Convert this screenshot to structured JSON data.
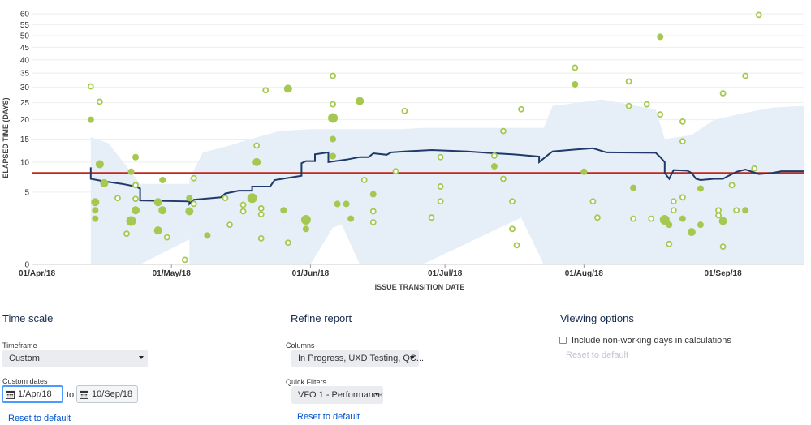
{
  "chart_data": {
    "type": "scatter",
    "xlabel": "ISSUE TRANSITION DATE",
    "ylabel": "ELAPSED TIME (DAYS)",
    "y_scale": "sqrt",
    "ylim": [
      0,
      62
    ],
    "xlim": [
      "2018-03-31",
      "2018-09-19"
    ],
    "x_ticks": [
      {
        "date": "2018-04-01",
        "label": "01/Apr/18"
      },
      {
        "date": "2018-05-01",
        "label": "01/May/18"
      },
      {
        "date": "2018-06-01",
        "label": "01/Jun/18"
      },
      {
        "date": "2018-07-01",
        "label": "01/Jul/18"
      },
      {
        "date": "2018-08-01",
        "label": "01/Aug/18"
      },
      {
        "date": "2018-09-01",
        "label": "01/Sep/18"
      }
    ],
    "y_ticks": [
      0,
      5,
      10,
      15,
      20,
      25,
      30,
      35,
      40,
      45,
      50,
      55,
      60
    ],
    "average_line": 8,
    "colors": {
      "issue": "#a5c850",
      "rolling": "#1f3a68",
      "average": "#c3281c",
      "band": "#e6eef8"
    },
    "rolling_average": [
      [
        "2018-04-13",
        9
      ],
      [
        "2018-04-13",
        7
      ],
      [
        "2018-04-16",
        6.6
      ],
      [
        "2018-04-20",
        6.2
      ],
      [
        "2018-04-23",
        5.8
      ],
      [
        "2018-04-24",
        5.5
      ],
      [
        "2018-04-24",
        3.9
      ],
      [
        "2018-05-05",
        3.8
      ],
      [
        "2018-05-05",
        3.5
      ],
      [
        "2018-05-06",
        4.0
      ],
      [
        "2018-05-12",
        4.3
      ],
      [
        "2018-05-13",
        4.8
      ],
      [
        "2018-05-16",
        5.2
      ],
      [
        "2018-05-19",
        5.2
      ],
      [
        "2018-05-19",
        5.8
      ],
      [
        "2018-05-23",
        5.8
      ],
      [
        "2018-05-24",
        6.8
      ],
      [
        "2018-05-30",
        7.5
      ],
      [
        "2018-05-30",
        9.8
      ],
      [
        "2018-05-31",
        10.2
      ],
      [
        "2018-06-02",
        10.2
      ],
      [
        "2018-06-02",
        11.6
      ],
      [
        "2018-06-05",
        12.0
      ],
      [
        "2018-06-05",
        10.0
      ],
      [
        "2018-06-09",
        10.5
      ],
      [
        "2018-06-12",
        11.0
      ],
      [
        "2018-06-14",
        11.0
      ],
      [
        "2018-06-15",
        11.8
      ],
      [
        "2018-06-18",
        11.5
      ],
      [
        "2018-06-19",
        12.0
      ],
      [
        "2018-06-22",
        12.2
      ],
      [
        "2018-06-28",
        12.5
      ],
      [
        "2018-07-06",
        12.2
      ],
      [
        "2018-07-12",
        11.8
      ],
      [
        "2018-07-16",
        11.6
      ],
      [
        "2018-07-22",
        11.1
      ],
      [
        "2018-07-22",
        10.0
      ],
      [
        "2018-07-24",
        11.5
      ],
      [
        "2018-07-25",
        12.2
      ],
      [
        "2018-07-30",
        12.6
      ],
      [
        "2018-08-03",
        12.9
      ],
      [
        "2018-08-06",
        12.0
      ],
      [
        "2018-08-17",
        11.9
      ],
      [
        "2018-08-18",
        11.0
      ],
      [
        "2018-08-19",
        10.0
      ],
      [
        "2018-08-19",
        8.0
      ],
      [
        "2018-08-20",
        7.0
      ],
      [
        "2018-08-21",
        8.5
      ],
      [
        "2018-08-24",
        8.4
      ],
      [
        "2018-08-25",
        8.0
      ],
      [
        "2018-08-26",
        7.0
      ],
      [
        "2018-08-27",
        6.8
      ],
      [
        "2018-08-30",
        7.0
      ],
      [
        "2018-09-01",
        7.0
      ],
      [
        "2018-09-02",
        7.4
      ],
      [
        "2018-09-04",
        8.2
      ],
      [
        "2018-09-06",
        8.6
      ],
      [
        "2018-09-09",
        7.8
      ],
      [
        "2018-09-12",
        8.0
      ],
      [
        "2018-09-14",
        8.3
      ],
      [
        "2018-09-19",
        8.3
      ]
    ],
    "band": [
      [
        "2018-04-13",
        0,
        15.5
      ],
      [
        "2018-04-17",
        0,
        14.0
      ],
      [
        "2018-04-24",
        0,
        6.2
      ],
      [
        "2018-05-05",
        0.6,
        6.2
      ],
      [
        "2018-05-05",
        0,
        7.0
      ],
      [
        "2018-05-08",
        0,
        12.0
      ],
      [
        "2018-05-14",
        0,
        13.5
      ],
      [
        "2018-05-17",
        0,
        14.5
      ],
      [
        "2018-05-25",
        0,
        17.0
      ],
      [
        "2018-06-01",
        0,
        17.5
      ],
      [
        "2018-06-06",
        1.3,
        17.5
      ],
      [
        "2018-06-08",
        1.5,
        17.5
      ],
      [
        "2018-06-12",
        0,
        17.5
      ],
      [
        "2018-06-21",
        0,
        17.5
      ],
      [
        "2018-06-26",
        0,
        17.8
      ],
      [
        "2018-07-18",
        2.1,
        17.8
      ],
      [
        "2018-07-23",
        0,
        17.8
      ],
      [
        "2018-07-25",
        0,
        24.0
      ],
      [
        "2018-08-05",
        0,
        26.0
      ],
      [
        "2018-08-17",
        0,
        23.0
      ],
      [
        "2018-08-19",
        0,
        15.0
      ],
      [
        "2018-08-25",
        0,
        16.0
      ],
      [
        "2018-08-30",
        0,
        20.0
      ],
      [
        "2018-09-06",
        0,
        22.0
      ],
      [
        "2018-09-12",
        0,
        23.5
      ],
      [
        "2018-09-19",
        0,
        24.0
      ]
    ],
    "issues": [
      [
        "2018-04-13",
        30.3,
        "ring",
        3
      ],
      [
        "2018-04-13",
        20.0,
        "dot",
        4
      ],
      [
        "2018-04-14",
        3.7,
        "dot",
        5
      ],
      [
        "2018-04-14",
        2.8,
        "dot",
        4
      ],
      [
        "2018-04-14",
        2.0,
        "dot",
        4
      ],
      [
        "2018-04-15",
        25.3,
        "ring",
        3
      ],
      [
        "2018-04-15",
        9.6,
        "dot",
        5
      ],
      [
        "2018-04-16",
        6.3,
        "dot",
        5
      ],
      [
        "2018-04-19",
        4.2,
        "ring",
        3
      ],
      [
        "2018-04-21",
        0.9,
        "ring",
        3
      ],
      [
        "2018-04-22",
        1.8,
        "dot",
        6
      ],
      [
        "2018-04-22",
        8.2,
        "dot",
        4
      ],
      [
        "2018-04-23",
        11.0,
        "dot",
        4
      ],
      [
        "2018-04-23",
        2.8,
        "dot",
        5
      ],
      [
        "2018-04-23",
        6.0,
        "ring",
        3
      ],
      [
        "2018-04-23",
        4.1,
        "ring",
        3
      ],
      [
        "2018-04-28",
        3.7,
        "dot",
        5
      ],
      [
        "2018-04-28",
        1.1,
        "dot",
        5
      ],
      [
        "2018-04-29",
        6.8,
        "dot",
        4
      ],
      [
        "2018-04-29",
        2.8,
        "dot",
        5
      ],
      [
        "2018-04-30",
        0.7,
        "ring",
        3
      ],
      [
        "2018-05-04",
        0.02,
        "ring",
        3
      ],
      [
        "2018-05-05",
        4.2,
        "dot",
        4
      ],
      [
        "2018-05-05",
        2.7,
        "dot",
        5
      ],
      [
        "2018-05-06",
        3.5,
        "ring",
        3
      ],
      [
        "2018-05-06",
        7.1,
        "ring",
        3
      ],
      [
        "2018-05-09",
        0.8,
        "dot",
        4
      ],
      [
        "2018-05-13",
        4.2,
        "ring",
        3
      ],
      [
        "2018-05-14",
        1.5,
        "ring",
        3
      ],
      [
        "2018-05-17",
        3.4,
        "ring",
        3
      ],
      [
        "2018-05-17",
        2.7,
        "ring",
        3
      ],
      [
        "2018-05-19",
        4.2,
        "dot",
        6
      ],
      [
        "2018-05-20",
        13.5,
        "ring",
        3
      ],
      [
        "2018-05-20",
        10.0,
        "dot",
        5
      ],
      [
        "2018-05-21",
        0.65,
        "ring",
        3
      ],
      [
        "2018-05-21",
        2.4,
        "ring",
        3
      ],
      [
        "2018-05-21",
        3.0,
        "ring",
        3
      ],
      [
        "2018-05-22",
        29.0,
        "ring",
        3
      ],
      [
        "2018-05-26",
        2.8,
        "dot",
        4
      ],
      [
        "2018-05-27",
        0.45,
        "ring",
        3
      ],
      [
        "2018-05-27",
        29.5,
        "dot",
        5
      ],
      [
        "2018-05-31",
        1.2,
        "dot",
        4
      ],
      [
        "2018-05-31",
        1.9,
        "dot",
        6
      ],
      [
        "2018-06-06",
        34.0,
        "ring",
        3
      ],
      [
        "2018-06-06",
        20.5,
        "dot",
        6
      ],
      [
        "2018-06-06",
        15.0,
        "dot",
        4
      ],
      [
        "2018-06-06",
        11.2,
        "dot",
        4
      ],
      [
        "2018-06-06",
        24.5,
        "ring",
        3
      ],
      [
        "2018-06-07",
        3.5,
        "dot",
        4
      ],
      [
        "2018-06-09",
        3.5,
        "dot",
        4
      ],
      [
        "2018-06-10",
        2.0,
        "dot",
        4
      ],
      [
        "2018-06-12",
        25.5,
        "dot",
        5
      ],
      [
        "2018-06-13",
        6.8,
        "ring",
        3
      ],
      [
        "2018-06-15",
        4.7,
        "dot",
        4
      ],
      [
        "2018-06-15",
        2.7,
        "ring",
        3
      ],
      [
        "2018-06-15",
        1.7,
        "ring",
        3
      ],
      [
        "2018-06-20",
        8.3,
        "ring",
        3
      ],
      [
        "2018-06-22",
        22.5,
        "ring",
        3
      ],
      [
        "2018-06-28",
        2.1,
        "ring",
        3
      ],
      [
        "2018-06-30",
        11.0,
        "ring",
        3
      ],
      [
        "2018-06-30",
        5.8,
        "ring",
        3
      ],
      [
        "2018-06-30",
        3.8,
        "ring",
        3
      ],
      [
        "2018-07-12",
        9.2,
        "dot",
        4
      ],
      [
        "2018-07-12",
        11.3,
        "ring",
        3
      ],
      [
        "2018-07-14",
        17.0,
        "ring",
        3
      ],
      [
        "2018-07-14",
        7.0,
        "ring",
        3
      ],
      [
        "2018-07-16",
        3.8,
        "ring",
        3
      ],
      [
        "2018-07-16",
        1.2,
        "ring",
        3
      ],
      [
        "2018-07-17",
        0.35,
        "ring",
        3
      ],
      [
        "2018-07-18",
        23.0,
        "ring",
        3
      ],
      [
        "2018-07-30",
        37.0,
        "ring",
        3
      ],
      [
        "2018-07-30",
        31.0,
        "dot",
        4
      ],
      [
        "2018-08-01",
        8.2,
        "dot",
        4
      ],
      [
        "2018-08-03",
        3.8,
        "ring",
        3
      ],
      [
        "2018-08-04",
        2.1,
        "ring",
        3
      ],
      [
        "2018-08-11",
        24.0,
        "ring",
        3
      ],
      [
        "2018-08-11",
        32.0,
        "ring",
        3
      ],
      [
        "2018-08-12",
        5.6,
        "dot",
        4
      ],
      [
        "2018-08-12",
        2.0,
        "ring",
        3
      ],
      [
        "2018-08-15",
        24.5,
        "ring",
        3
      ],
      [
        "2018-08-16",
        2.0,
        "ring",
        3
      ],
      [
        "2018-08-18",
        49.5,
        "dot",
        4
      ],
      [
        "2018-08-18",
        21.5,
        "ring",
        3
      ],
      [
        "2018-08-19",
        1.9,
        "dot",
        6
      ],
      [
        "2018-08-20",
        0.4,
        "ring",
        3
      ],
      [
        "2018-08-20",
        1.5,
        "dot",
        4
      ],
      [
        "2018-08-21",
        3.8,
        "ring",
        3
      ],
      [
        "2018-08-21",
        2.8,
        "ring",
        3
      ],
      [
        "2018-08-23",
        19.5,
        "ring",
        3
      ],
      [
        "2018-08-23",
        14.5,
        "ring",
        3
      ],
      [
        "2018-08-23",
        4.3,
        "ring",
        3
      ],
      [
        "2018-08-23",
        2.0,
        "dot",
        4
      ],
      [
        "2018-08-25",
        1.0,
        "dot",
        5
      ],
      [
        "2018-08-27",
        5.5,
        "dot",
        4
      ],
      [
        "2018-08-27",
        1.5,
        "dot",
        4
      ],
      [
        "2018-08-31",
        2.8,
        "ring",
        3
      ],
      [
        "2018-08-31",
        2.3,
        "ring",
        3
      ],
      [
        "2018-09-01",
        28.0,
        "ring",
        3
      ],
      [
        "2018-09-01",
        1.8,
        "dot",
        5
      ],
      [
        "2018-09-01",
        0.3,
        "ring",
        3
      ],
      [
        "2018-09-03",
        6.0,
        "ring",
        3
      ],
      [
        "2018-09-04",
        2.8,
        "ring",
        3
      ],
      [
        "2018-09-06",
        2.8,
        "dot",
        4
      ],
      [
        "2018-09-06",
        34.0,
        "ring",
        3
      ],
      [
        "2018-09-08",
        8.8,
        "ring",
        3
      ],
      [
        "2018-09-09",
        59.5,
        "ring",
        3
      ]
    ]
  },
  "controls": {
    "time_scale": {
      "title": "Time scale",
      "timeframe_label": "Timeframe",
      "timeframe_value": "Custom",
      "custom_dates_label": "Custom dates",
      "from_date": "1/Apr/18",
      "to_label": "to",
      "to_date": "10/Sep/18",
      "reset_label": "Reset to default"
    },
    "refine": {
      "title": "Refine report",
      "columns_label": "Columns",
      "columns_value": "In Progress, UXD Testing, QC...",
      "quick_filters_label": "Quick Filters",
      "quick_filters_value": "VFO 1 - Performance",
      "reset_label": "Reset to default"
    },
    "viewing": {
      "title": "Viewing options",
      "checkbox_label": "Include non-working days in calculations",
      "checkbox_checked": false,
      "reset_label": "Reset to default"
    }
  }
}
